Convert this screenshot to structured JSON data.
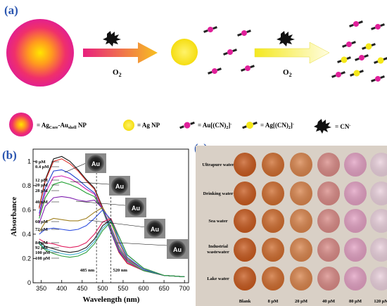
{
  "panel_a": {
    "tag": "(a)",
    "arrow1_label": "O",
    "arrow1_sub": "2",
    "arrow2_label": "O",
    "arrow2_sub": "2",
    "legend": {
      "core_shell": "= Ag",
      "core_shell_sub1": "Core",
      "core_shell_mid": "-Au",
      "core_shell_sub2": "shell",
      "core_shell_end": " NP",
      "ag_np": "= Ag NP",
      "au_cn": "= Au[(CN)",
      "au_cn_sub": "2",
      "au_cn_end": "]",
      "au_cn_sup": "-",
      "ag_cn": "= Ag[(CN)",
      "ag_cn_sub": "2",
      "ag_cn_end": "]",
      "ag_cn_sup": "-",
      "cn": "= CN",
      "cn_sup": "-"
    },
    "colors": {
      "magenta": "#e0209a",
      "yellow": "#f5e81a",
      "orange": "#f59a20",
      "red": "#ea1f3a"
    }
  },
  "panel_b": {
    "tag": "(b)",
    "au_label": "Au",
    "marker_485": "485 nm",
    "marker_520": "520 nm",
    "conc_labels": [
      "0 μM",
      "0.4 μM",
      "12 μM",
      "20 μM",
      "28 μM",
      "40 μM",
      "60 μM",
      "72 μM",
      "84 μM",
      "92 μM",
      "100 μM",
      "108 μM"
    ]
  },
  "chart_data": {
    "type": "line",
    "xlabel": "Wavelength (nm)",
    "ylabel": "Absorbance",
    "xlim": [
      330,
      710
    ],
    "ylim": [
      0.0,
      1.1
    ],
    "xticks": [
      350,
      400,
      450,
      500,
      550,
      600,
      650,
      700
    ],
    "yticks": [
      0.0,
      0.2,
      0.4,
      0.6,
      0.8,
      1.0
    ],
    "series": [
      {
        "name": "0 μM",
        "color": "#111111",
        "x": [
          345,
          360,
          380,
          400,
          420,
          440,
          460,
          480,
          500,
          520,
          540,
          560,
          600,
          650,
          700
        ],
        "y": [
          0.62,
          0.85,
          1.02,
          1.04,
          1.0,
          0.93,
          0.85,
          0.78,
          0.62,
          0.42,
          0.25,
          0.16,
          0.1,
          0.06,
          0.05
        ]
      },
      {
        "name": "0.4 μM",
        "color": "#e0302a",
        "x": [
          345,
          360,
          380,
          400,
          420,
          440,
          460,
          480,
          500,
          520,
          540,
          560,
          600,
          650,
          700
        ],
        "y": [
          0.61,
          0.84,
          1.0,
          1.02,
          0.98,
          0.92,
          0.84,
          0.77,
          0.61,
          0.42,
          0.25,
          0.16,
          0.1,
          0.06,
          0.05
        ]
      },
      {
        "name": "12 μM",
        "color": "#2040d0",
        "x": [
          345,
          360,
          380,
          400,
          420,
          440,
          460,
          480,
          500,
          520,
          540,
          560,
          600,
          650,
          700
        ],
        "y": [
          0.57,
          0.78,
          0.92,
          0.93,
          0.9,
          0.85,
          0.79,
          0.74,
          0.6,
          0.42,
          0.26,
          0.17,
          0.1,
          0.06,
          0.05
        ]
      },
      {
        "name": "20 μM",
        "color": "#d020b0",
        "x": [
          345,
          360,
          380,
          400,
          420,
          440,
          460,
          480,
          500,
          520,
          540,
          560,
          600,
          650,
          700
        ],
        "y": [
          0.55,
          0.74,
          0.87,
          0.88,
          0.86,
          0.82,
          0.77,
          0.73,
          0.6,
          0.43,
          0.27,
          0.17,
          0.1,
          0.06,
          0.05
        ]
      },
      {
        "name": "28 μM",
        "color": "#20a030",
        "x": [
          345,
          360,
          380,
          400,
          420,
          440,
          460,
          480,
          500,
          520,
          540,
          560,
          600,
          650,
          700
        ],
        "y": [
          0.53,
          0.7,
          0.81,
          0.83,
          0.81,
          0.78,
          0.74,
          0.71,
          0.6,
          0.44,
          0.28,
          0.18,
          0.1,
          0.06,
          0.05
        ]
      },
      {
        "name": "40 μM",
        "color": "#8020b0",
        "x": [
          345,
          360,
          380,
          400,
          420,
          440,
          460,
          480,
          500,
          520,
          540,
          560,
          600,
          650,
          700
        ],
        "y": [
          0.49,
          0.63,
          0.7,
          0.71,
          0.7,
          0.68,
          0.67,
          0.68,
          0.61,
          0.46,
          0.3,
          0.19,
          0.11,
          0.06,
          0.05
        ]
      },
      {
        "name": "60 μM",
        "color": "#a08020",
        "x": [
          345,
          360,
          380,
          400,
          420,
          440,
          460,
          480,
          500,
          520,
          540,
          560,
          600,
          650,
          700
        ],
        "y": [
          0.42,
          0.5,
          0.53,
          0.52,
          0.51,
          0.51,
          0.53,
          0.58,
          0.62,
          0.5,
          0.33,
          0.2,
          0.11,
          0.06,
          0.05
        ]
      },
      {
        "name": "72 μM",
        "color": "#3050e0",
        "x": [
          345,
          360,
          380,
          400,
          420,
          440,
          460,
          480,
          500,
          520,
          540,
          560,
          600,
          650,
          700
        ],
        "y": [
          0.4,
          0.44,
          0.45,
          0.44,
          0.43,
          0.44,
          0.47,
          0.53,
          0.6,
          0.52,
          0.35,
          0.21,
          0.11,
          0.06,
          0.05
        ]
      },
      {
        "name": "84 μM",
        "color": "#e02060",
        "x": [
          345,
          360,
          380,
          400,
          420,
          440,
          460,
          480,
          500,
          520,
          540,
          560,
          600,
          650,
          700
        ],
        "y": [
          0.36,
          0.33,
          0.32,
          0.3,
          0.29,
          0.3,
          0.33,
          0.4,
          0.5,
          0.53,
          0.38,
          0.23,
          0.12,
          0.06,
          0.05
        ]
      },
      {
        "name": "92 μM",
        "color": "#202020",
        "x": [
          345,
          360,
          380,
          400,
          420,
          440,
          460,
          480,
          500,
          520,
          540,
          560,
          600,
          650,
          700
        ],
        "y": [
          0.34,
          0.3,
          0.28,
          0.26,
          0.25,
          0.26,
          0.29,
          0.36,
          0.47,
          0.52,
          0.38,
          0.23,
          0.12,
          0.06,
          0.05
        ]
      },
      {
        "name": "100 μM",
        "color": "#40b0d0",
        "x": [
          345,
          360,
          380,
          400,
          420,
          440,
          460,
          480,
          500,
          520,
          540,
          560,
          600,
          650,
          700
        ],
        "y": [
          0.33,
          0.28,
          0.26,
          0.24,
          0.23,
          0.24,
          0.27,
          0.34,
          0.45,
          0.51,
          0.38,
          0.23,
          0.12,
          0.06,
          0.05
        ]
      },
      {
        "name": "108 μM",
        "color": "#30a040",
        "x": [
          345,
          360,
          380,
          400,
          420,
          440,
          460,
          480,
          500,
          520,
          540,
          560,
          600,
          650,
          700
        ],
        "y": [
          0.32,
          0.27,
          0.24,
          0.22,
          0.21,
          0.22,
          0.25,
          0.32,
          0.43,
          0.5,
          0.38,
          0.23,
          0.12,
          0.06,
          0.05
        ]
      }
    ]
  },
  "panel_c": {
    "tag": "(c)",
    "rows": [
      "Ultrapure water",
      "Drinking water",
      "Sea water",
      "Industrial wastewater",
      "Lake water"
    ],
    "row_lines": [
      [
        "Ultrapure water"
      ],
      [
        "Drinking water"
      ],
      [
        "Sea water"
      ],
      [
        "Industrial",
        "wastewater"
      ],
      [
        "Lake water"
      ]
    ],
    "columns": [
      "Blank",
      "8 μM",
      "20 μM",
      "40 μM",
      "80 μM",
      "120 μM"
    ],
    "well_colors": [
      "#c85a1e",
      "#cf6c2e",
      "#d9844c",
      "#d98a86",
      "#e2a0c2",
      "#ead0dc"
    ]
  }
}
